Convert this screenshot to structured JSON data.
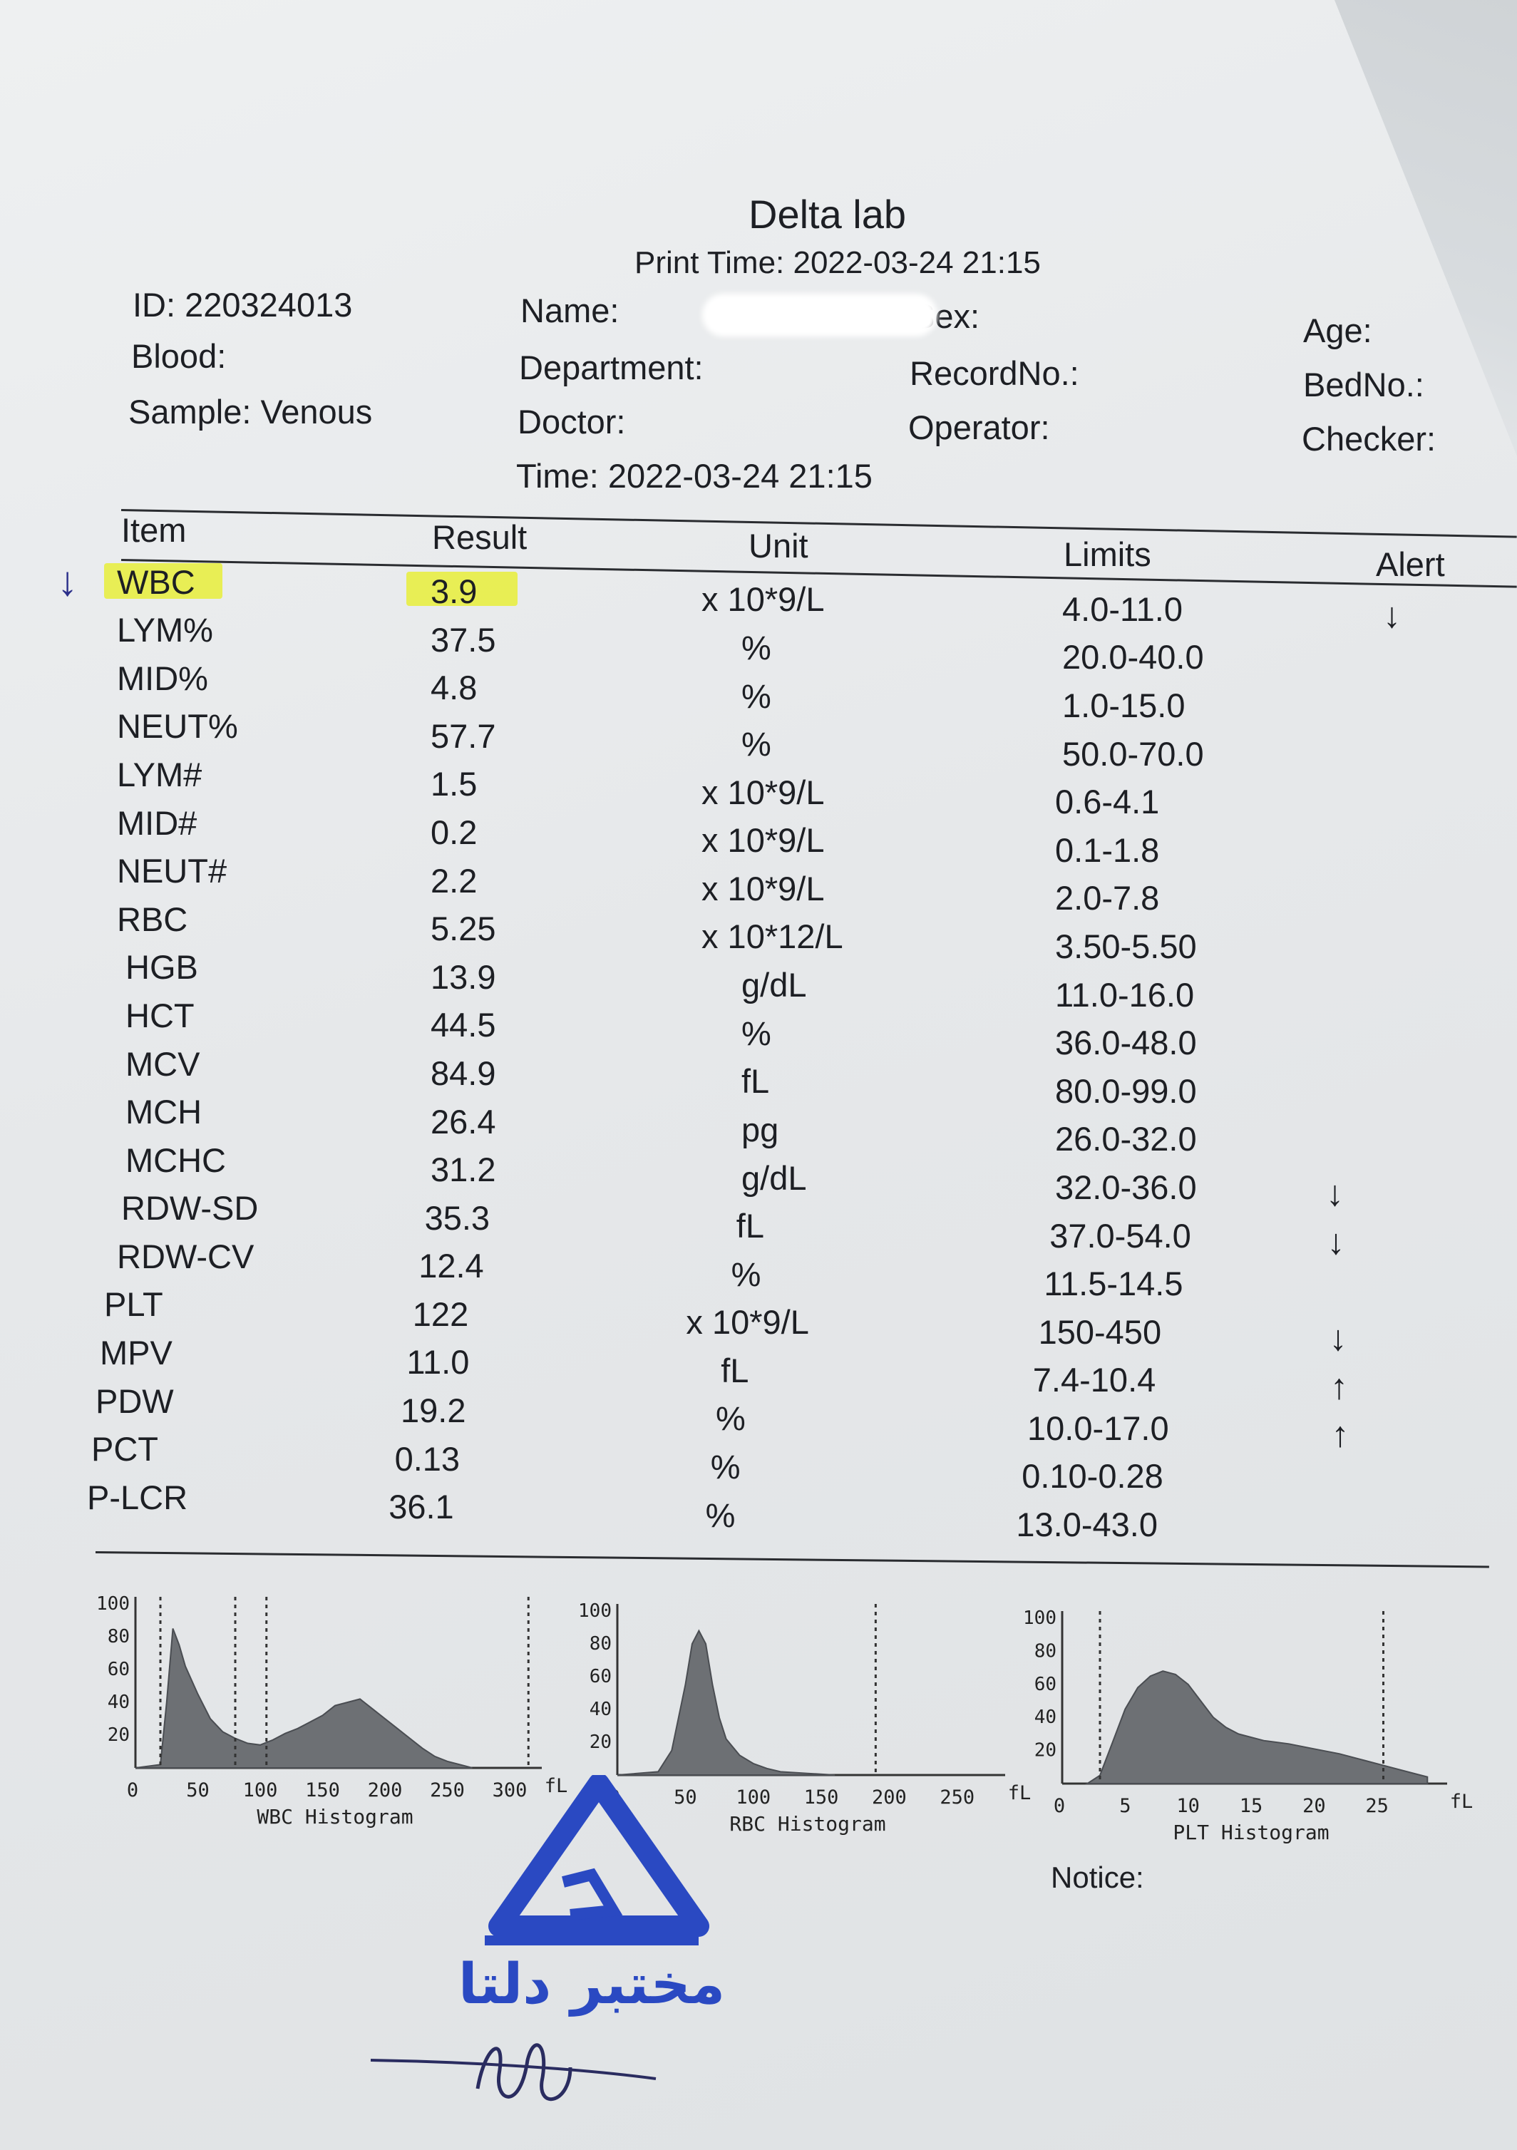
{
  "lab": {
    "title": "Delta lab",
    "print_time": "Print Time: 2022-03-24 21:15"
  },
  "patient": {
    "id": "ID: 220324013",
    "blood": "Blood:",
    "sample": "Sample: Venous",
    "name": "Name:",
    "sex": "Sex:",
    "department": "Department:",
    "doctor": "Doctor:",
    "time": "Time: 2022-03-24 21:15",
    "record_no": "RecordNo.:",
    "operator": "Operator:",
    "age": "Age:",
    "bed_no": "BedNo.:",
    "checker": "Checker:"
  },
  "table": {
    "headers": {
      "item": "Item",
      "result": "Result",
      "unit": "Unit",
      "limits": "Limits",
      "alert": "Alert"
    },
    "rows": [
      {
        "item": "WBC",
        "result": "3.9",
        "unit": "x 10*9/L",
        "limits": "4.0-11.0",
        "alert": "↓"
      },
      {
        "item": "LYM%",
        "result": "37.5",
        "unit": "%",
        "limits": "20.0-40.0",
        "alert": ""
      },
      {
        "item": "MID%",
        "result": "4.8",
        "unit": "%",
        "limits": "1.0-15.0",
        "alert": ""
      },
      {
        "item": "NEUT%",
        "result": "57.7",
        "unit": "%",
        "limits": "50.0-70.0",
        "alert": ""
      },
      {
        "item": "LYM#",
        "result": "1.5",
        "unit": "x 10*9/L",
        "limits": "0.6-4.1",
        "alert": ""
      },
      {
        "item": "MID#",
        "result": "0.2",
        "unit": "x 10*9/L",
        "limits": "0.1-1.8",
        "alert": ""
      },
      {
        "item": "NEUT#",
        "result": "2.2",
        "unit": "x 10*9/L",
        "limits": "2.0-7.8",
        "alert": ""
      },
      {
        "item": "RBC",
        "result": "5.25",
        "unit": "x 10*12/L",
        "limits": "3.50-5.50",
        "alert": ""
      },
      {
        "item": "HGB",
        "result": "13.9",
        "unit": "g/dL",
        "limits": "11.0-16.0",
        "alert": ""
      },
      {
        "item": "HCT",
        "result": "44.5",
        "unit": "%",
        "limits": "36.0-48.0",
        "alert": ""
      },
      {
        "item": "MCV",
        "result": "84.9",
        "unit": "fL",
        "limits": "80.0-99.0",
        "alert": ""
      },
      {
        "item": "MCH",
        "result": "26.4",
        "unit": "pg",
        "limits": "26.0-32.0",
        "alert": ""
      },
      {
        "item": "MCHC",
        "result": "31.2",
        "unit": "g/dL",
        "limits": "32.0-36.0",
        "alert": "↓"
      },
      {
        "item": "RDW-SD",
        "result": "35.3",
        "unit": "fL",
        "limits": "37.0-54.0",
        "alert": "↓"
      },
      {
        "item": "RDW-CV",
        "result": "12.4",
        "unit": "%",
        "limits": "11.5-14.5",
        "alert": ""
      },
      {
        "item": "PLT",
        "result": "122",
        "unit": "x 10*9/L",
        "limits": "150-450",
        "alert": "↓"
      },
      {
        "item": "MPV",
        "result": "11.0",
        "unit": "fL",
        "limits": "7.4-10.4",
        "alert": "↑"
      },
      {
        "item": "PDW",
        "result": "19.2",
        "unit": "%",
        "limits": "10.0-17.0",
        "alert": "↑"
      },
      {
        "item": "PCT",
        "result": "0.13",
        "unit": "%",
        "limits": "0.10-0.28",
        "alert": ""
      },
      {
        "item": "P-LCR",
        "result": "36.1",
        "unit": "%",
        "limits": "13.0-43.0",
        "alert": ""
      }
    ]
  },
  "handwritten_mark": "↓",
  "histograms": [
    {
      "title": "WBC Histogram",
      "unit": "fL",
      "y_ticks": [
        "100",
        "80",
        "60",
        "40",
        "20"
      ],
      "x_ticks": [
        "0",
        "50",
        "100",
        "150",
        "200",
        "250",
        "300"
      ],
      "x_range": [
        0,
        320
      ],
      "y_range": [
        0,
        100
      ],
      "discriminators": [
        20,
        80,
        105,
        315
      ],
      "curve_x": [
        0,
        20,
        25,
        30,
        35,
        40,
        50,
        60,
        70,
        80,
        90,
        100,
        110,
        120,
        130,
        140,
        150,
        160,
        170,
        180,
        190,
        200,
        210,
        220,
        230,
        240,
        250,
        260,
        270
      ],
      "curve_y": [
        0,
        2,
        40,
        85,
        75,
        62,
        45,
        30,
        22,
        18,
        15,
        14,
        17,
        21,
        24,
        28,
        32,
        38,
        40,
        42,
        36,
        30,
        24,
        18,
        12,
        7,
        4,
        2,
        0
      ]
    },
    {
      "title": "RBC Histogram",
      "unit": "fL",
      "y_ticks": [
        "100",
        "80",
        "60",
        "40",
        "20"
      ],
      "x_ticks": [
        "0",
        "50",
        "100",
        "150",
        "200",
        "250"
      ],
      "x_range": [
        0,
        280
      ],
      "y_range": [
        0,
        100
      ],
      "discriminators": [
        190
      ],
      "curve_x": [
        0,
        30,
        40,
        50,
        55,
        60,
        65,
        70,
        75,
        80,
        90,
        100,
        110,
        120,
        140,
        160
      ],
      "curve_y": [
        0,
        2,
        15,
        55,
        80,
        88,
        80,
        55,
        35,
        22,
        12,
        7,
        4,
        2,
        1,
        0
      ]
    },
    {
      "title": "PLT Histogram",
      "unit": "fL",
      "y_ticks": [
        "100",
        "80",
        "60",
        "40",
        "20"
      ],
      "x_ticks": [
        "0",
        "5",
        "10",
        "15",
        "20",
        "25"
      ],
      "x_range": [
        0,
        30
      ],
      "y_range": [
        0,
        100
      ],
      "discriminators": [
        3,
        25.5
      ],
      "curve_x": [
        2,
        3,
        4,
        5,
        6,
        7,
        8,
        9,
        10,
        11,
        12,
        13,
        14,
        16,
        18,
        20,
        22,
        24,
        26,
        28,
        29
      ],
      "curve_y": [
        0,
        5,
        25,
        45,
        58,
        65,
        68,
        66,
        60,
        50,
        40,
        34,
        30,
        26,
        24,
        21,
        18,
        14,
        10,
        6,
        4
      ]
    }
  ],
  "notice": "Notice:",
  "stamp": {
    "text": "مختبر دلتا",
    "color": "#2a49c2"
  }
}
